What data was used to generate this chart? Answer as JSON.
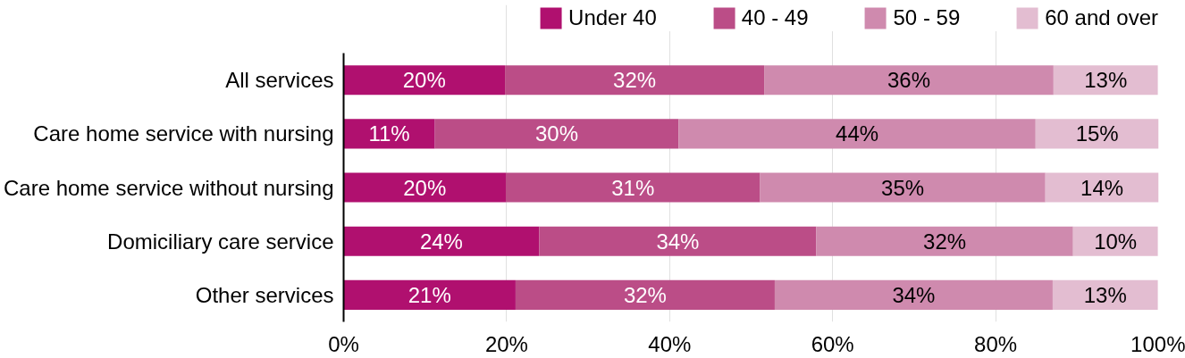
{
  "chart_data": {
    "type": "bar",
    "orientation": "horizontal",
    "stacked": true,
    "categories": [
      "All services",
      "Care home service with nursing",
      "Care home service without nursing",
      "Domiciliary care service",
      "Other services"
    ],
    "series": [
      {
        "name": "Under 40",
        "color": "#b0106f",
        "values": [
          19.8,
          11.2,
          19.9,
          24.0,
          21.1
        ],
        "value_labels": [
          "20%",
          "11%",
          "20%",
          "24%",
          "21%"
        ]
      },
      {
        "name": "40 - 49",
        "color": "#bb4d87",
        "values": [
          31.8,
          29.9,
          31.2,
          34.0,
          31.8
        ],
        "value_labels": [
          "32%",
          "30%",
          "31%",
          "34%",
          "32%"
        ]
      },
      {
        "name": "50 - 59",
        "color": "#cf8aae",
        "values": [
          35.5,
          43.8,
          35.0,
          31.5,
          34.1
        ],
        "value_labels": [
          "36%",
          "44%",
          "35%",
          "32%",
          "34%"
        ]
      },
      {
        "name": "60 and over",
        "color": "#e3bdd1",
        "values": [
          12.8,
          15.1,
          13.9,
          10.4,
          12.9
        ],
        "value_labels": [
          "13%",
          "15%",
          "14%",
          "10%",
          "13%"
        ]
      }
    ],
    "xlim": [
      0,
      100
    ],
    "xticks": [
      {
        "value": 0,
        "label": "0%"
      },
      {
        "value": 20,
        "label": "20%"
      },
      {
        "value": 40,
        "label": "40%"
      },
      {
        "value": 60,
        "label": "60%"
      },
      {
        "value": 80,
        "label": "80%"
      },
      {
        "value": 100,
        "label": "100%"
      }
    ],
    "grid": "x",
    "legend": "top"
  }
}
